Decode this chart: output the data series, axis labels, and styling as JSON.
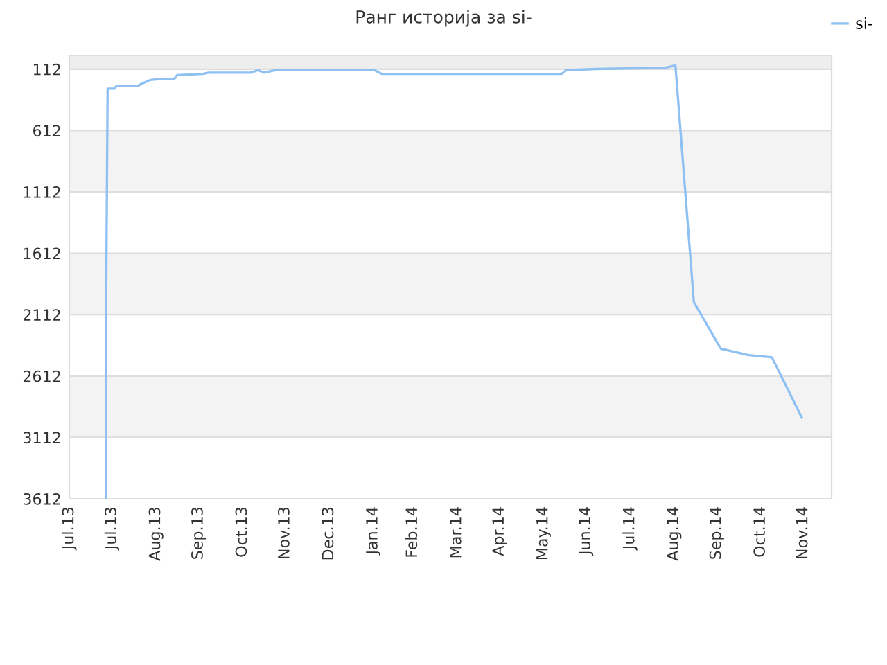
{
  "chart_data": {
    "type": "line",
    "title": "Ранг историја за si-",
    "x": [
      "2013-07-27",
      "2013-07-27",
      "2013-07-28",
      "2013-08-02",
      "2013-08-03",
      "2013-08-18",
      "2013-08-21",
      "2013-08-27",
      "2013-09-05",
      "2013-09-13",
      "2013-09-15",
      "2013-10-03",
      "2013-10-07",
      "2013-11-06",
      "2013-11-11",
      "2013-11-15",
      "2013-11-23",
      "2014-02-01",
      "2014-02-06",
      "2014-06-13",
      "2014-06-16",
      "2014-07-07",
      "2014-08-25",
      "2014-08-29",
      "2014-09-01",
      "2014-09-14",
      "2014-10-03",
      "2014-10-22",
      "2014-11-08",
      "2014-11-29"
    ],
    "series": [
      {
        "name": "si-",
        "color": "#8ec0f2",
        "values": [
          3612,
          1940,
          270,
          270,
          250,
          250,
          230,
          200,
          190,
          190,
          160,
          150,
          140,
          140,
          120,
          140,
          120,
          120,
          150,
          150,
          120,
          110,
          100,
          90,
          80,
          2010,
          2390,
          2440,
          2460,
          2950
        ]
      }
    ],
    "xlim": [
      "2013-07-01",
      "2014-12-20"
    ],
    "xticks": [
      {
        "value": "2013-07-01",
        "label": "Jul.13"
      },
      {
        "value": "2013-07-31",
        "label": "Jul.13"
      },
      {
        "value": "2013-08-31",
        "label": "Aug.13"
      },
      {
        "value": "2013-09-30",
        "label": "Sep.13"
      },
      {
        "value": "2013-10-31",
        "label": "Oct.13"
      },
      {
        "value": "2013-11-30",
        "label": "Nov.13"
      },
      {
        "value": "2013-12-31",
        "label": "Dec.13"
      },
      {
        "value": "2014-01-31",
        "label": "Jan.14"
      },
      {
        "value": "2014-02-28",
        "label": "Feb.14"
      },
      {
        "value": "2014-03-31",
        "label": "Mar.14"
      },
      {
        "value": "2014-04-30",
        "label": "Apr.14"
      },
      {
        "value": "2014-05-31",
        "label": "May.14"
      },
      {
        "value": "2014-06-30",
        "label": "Jun.14"
      },
      {
        "value": "2014-07-31",
        "label": "Jul.14"
      },
      {
        "value": "2014-08-31",
        "label": "Aug.14"
      },
      {
        "value": "2014-09-30",
        "label": "Sep.14"
      },
      {
        "value": "2014-10-31",
        "label": "Oct.14"
      },
      {
        "value": "2014-11-30",
        "label": "Nov.14"
      }
    ],
    "ylim": [
      3612,
      0
    ],
    "yticks": [
      112,
      612,
      1112,
      1612,
      2112,
      2612,
      3112,
      3612
    ],
    "bands": [
      {
        "axis": "y",
        "from": 0,
        "to": 112,
        "color": "#eeeeee"
      },
      {
        "axis": "y",
        "from": 612,
        "to": 1112,
        "color": "#f3f3f3"
      },
      {
        "axis": "y",
        "from": 1612,
        "to": 2112,
        "color": "#f3f3f3"
      },
      {
        "axis": "y",
        "from": 2612,
        "to": 3112,
        "color": "#f3f3f3"
      }
    ],
    "grid": "y",
    "legend": "top right",
    "marker": "none",
    "line_style": "solid"
  }
}
